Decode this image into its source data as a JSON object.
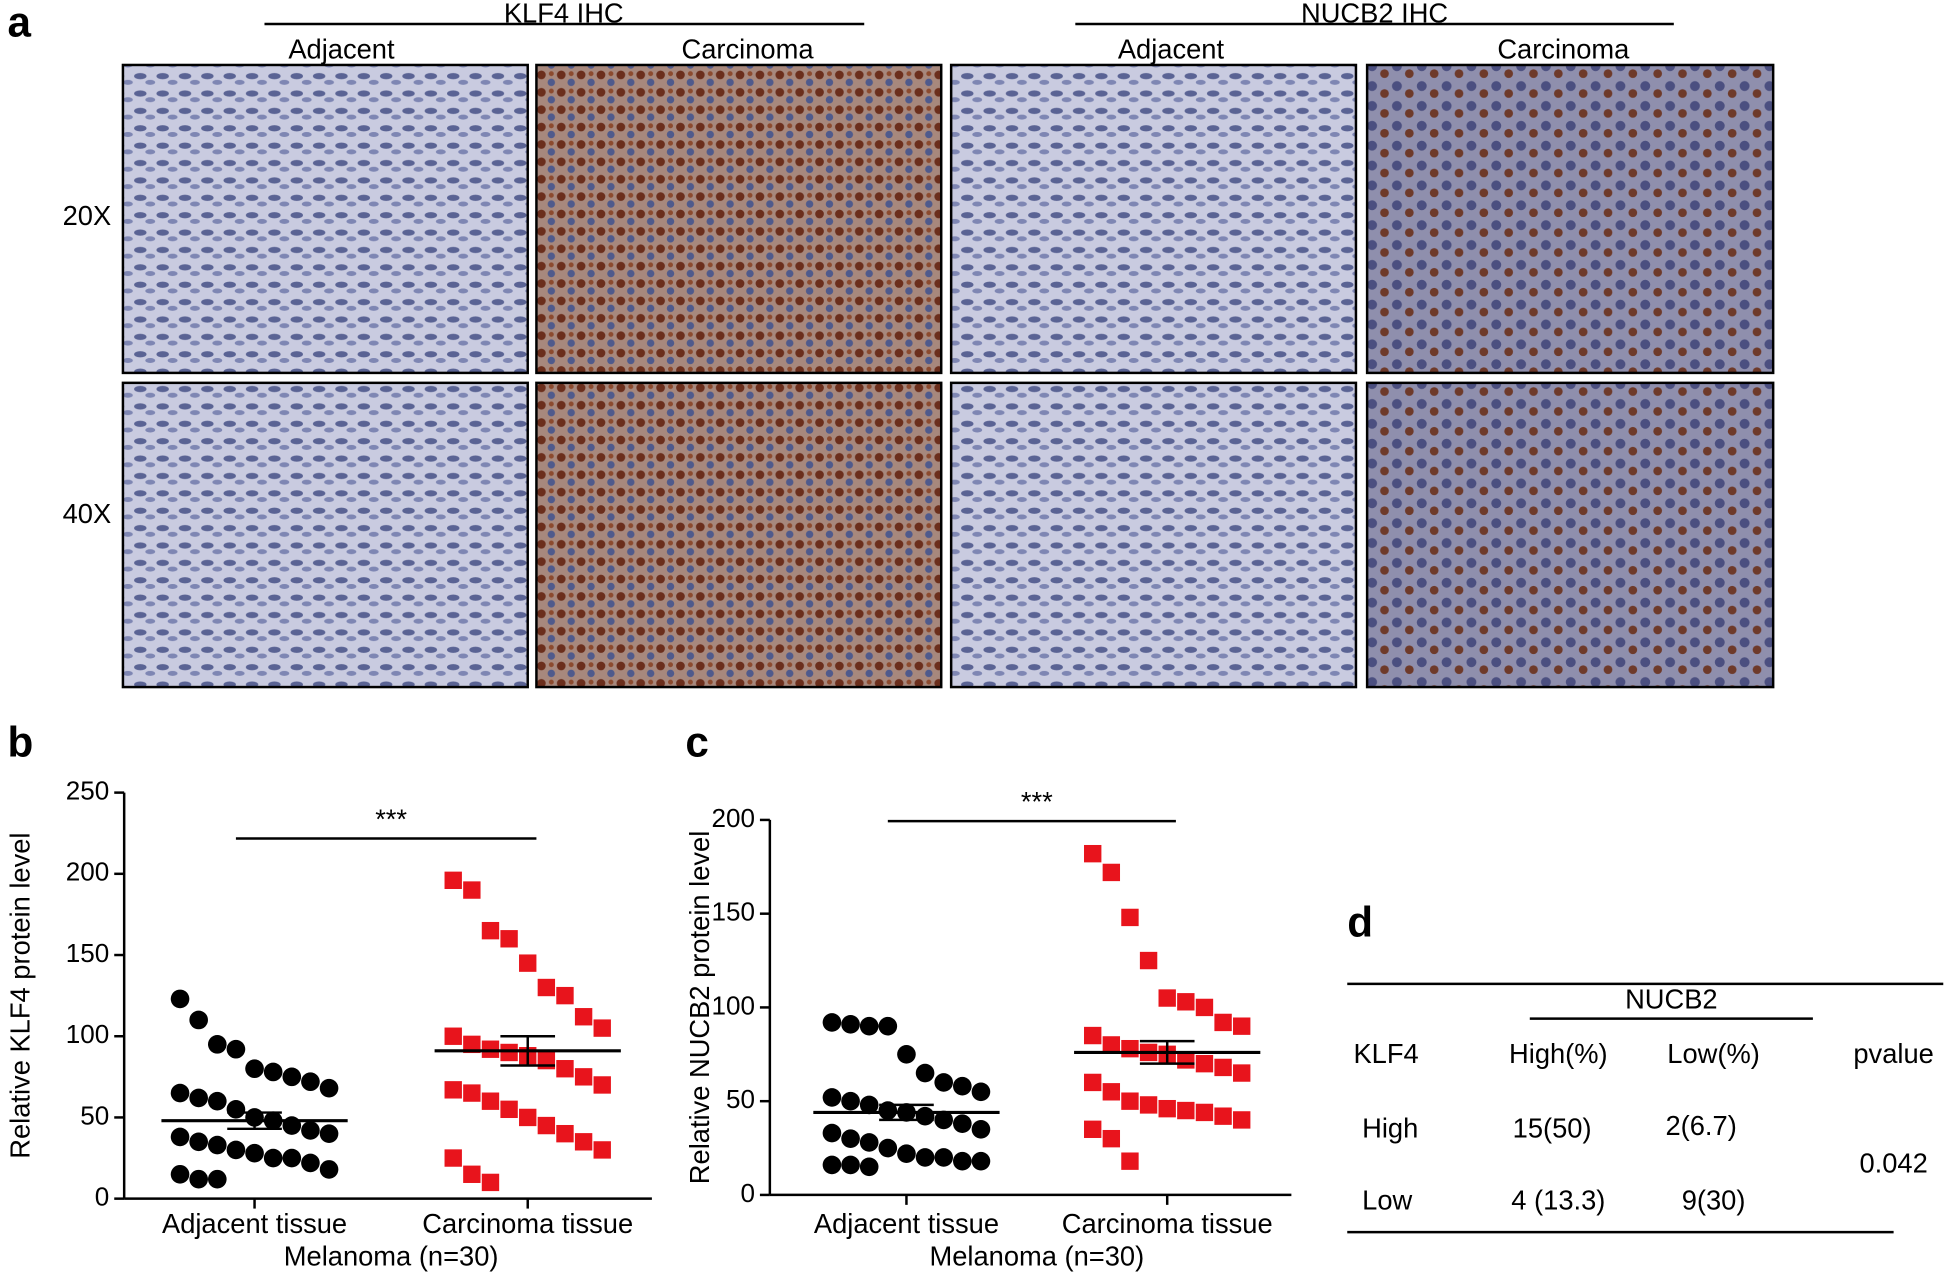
{
  "panel_a": {
    "letter": "a",
    "groups": [
      "KLF4 IHC",
      "NUCB2 IHC"
    ],
    "columns": [
      "Adjacent",
      "Carcinoma",
      "Adjacent",
      "Carcinoma"
    ],
    "rows": [
      "20X",
      "40X"
    ]
  },
  "chart_data": [
    {
      "type": "strip",
      "panel": "b",
      "ylabel": "Relative KLF4  protein level",
      "xlabel": "Melanoma (n=30)",
      "categories": [
        "Adjacent tissue",
        "Carcinoma tissue"
      ],
      "significance": "***",
      "ylim": [
        0,
        250
      ],
      "yticks": [
        0,
        50,
        100,
        150,
        200,
        250
      ],
      "series": [
        {
          "color": "#000000",
          "marker": "circle",
          "mean": 48,
          "sem": 5,
          "values": [
            123,
            110,
            95,
            92,
            80,
            78,
            75,
            72,
            68,
            65,
            62,
            60,
            55,
            50,
            48,
            45,
            42,
            40,
            38,
            35,
            33,
            30,
            28,
            25,
            25,
            22,
            18,
            15,
            12,
            12
          ]
        },
        {
          "color": "#e8141c",
          "marker": "square",
          "mean": 91,
          "sem": 9,
          "values": [
            196,
            190,
            165,
            160,
            145,
            130,
            125,
            112,
            105,
            100,
            95,
            92,
            90,
            88,
            85,
            80,
            75,
            70,
            67,
            65,
            60,
            55,
            50,
            45,
            40,
            35,
            30,
            25,
            15,
            10
          ]
        }
      ]
    },
    {
      "type": "strip",
      "panel": "c",
      "ylabel": "Relative NUCB2  protein level",
      "xlabel": "Melanoma (n=30)",
      "categories": [
        "Adjacent tissue",
        "Carcinoma tissue"
      ],
      "significance": "***",
      "ylim": [
        0,
        200
      ],
      "yticks": [
        0,
        50,
        100,
        150,
        200
      ],
      "series": [
        {
          "color": "#000000",
          "marker": "circle",
          "mean": 44,
          "sem": 4,
          "values": [
            92,
            91,
            90,
            90,
            75,
            65,
            60,
            58,
            55,
            52,
            50,
            48,
            45,
            44,
            42,
            40,
            38,
            35,
            33,
            30,
            28,
            25,
            22,
            20,
            20,
            18,
            18,
            16,
            16,
            15
          ]
        },
        {
          "color": "#e8141c",
          "marker": "square",
          "mean": 76,
          "sem": 6,
          "values": [
            182,
            172,
            148,
            125,
            105,
            103,
            100,
            92,
            90,
            85,
            80,
            78,
            76,
            75,
            72,
            70,
            68,
            65,
            60,
            55,
            50,
            48,
            46,
            45,
            44,
            42,
            40,
            35,
            30,
            18
          ]
        }
      ]
    }
  ],
  "table": {
    "letter": "d",
    "group": "NUCB2",
    "header": [
      "KLF4",
      "High(%)",
      "Low(%)",
      "pvalue"
    ],
    "rows": [
      [
        "High",
        "15(50)",
        "2(6.7)"
      ],
      [
        "Low",
        "4 (13.3)",
        "9(30)"
      ]
    ],
    "pvalue": "0.042"
  }
}
